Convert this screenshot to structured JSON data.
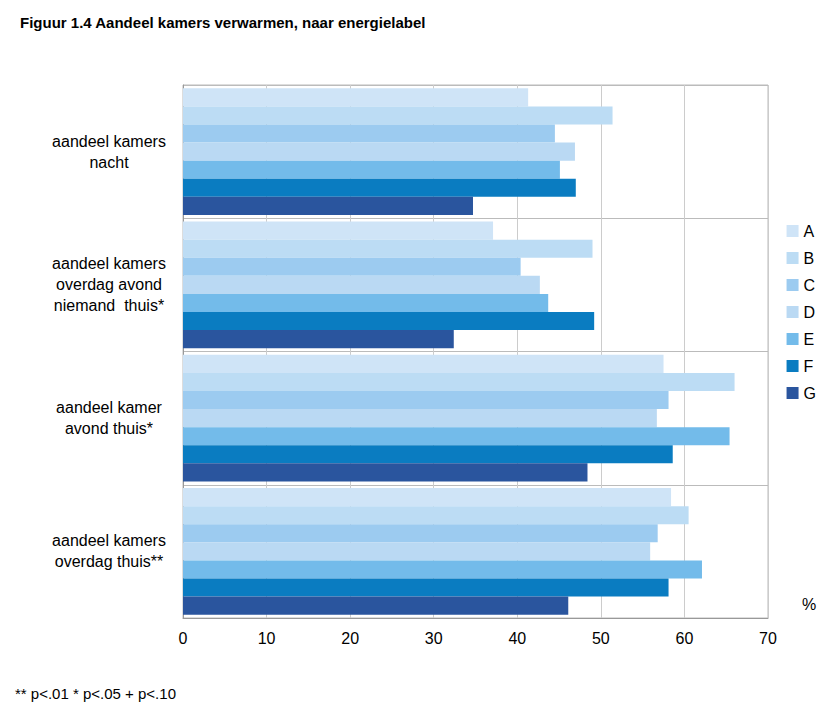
{
  "chart_data": {
    "type": "bar",
    "orientation": "horizontal",
    "title": "Figuur 1.4 Aandeel kamers verwarmen, naar energielabel",
    "xlabel": "%",
    "footnote": "** p<.01 * p<.05 + p<.10",
    "categories": [
      "aandeel kamers\nnacht",
      "aandeel kamers\noverdag avond\nniemand  thuis*",
      "aandeel kamer\navond thuis*",
      "aandeel kamers\noverdag thuis**"
    ],
    "series": [
      {
        "name": "A",
        "color": "#cfe4f7",
        "values": [
          41.3,
          37.1,
          57.5,
          58.4
        ]
      },
      {
        "name": "B",
        "color": "#bcdcf4",
        "values": [
          51.4,
          49.0,
          66.0,
          60.5
        ]
      },
      {
        "name": "C",
        "color": "#9ccbf0",
        "values": [
          44.5,
          40.4,
          58.1,
          56.8
        ]
      },
      {
        "name": "D",
        "color": "#bad9f3",
        "values": [
          46.9,
          42.7,
          56.7,
          55.9
        ]
      },
      {
        "name": "E",
        "color": "#73bbea",
        "values": [
          45.1,
          43.7,
          65.4,
          62.1
        ]
      },
      {
        "name": "F",
        "color": "#0a7cc1",
        "values": [
          47.0,
          49.2,
          58.6,
          58.1
        ]
      },
      {
        "name": "G",
        "color": "#2a559e",
        "values": [
          34.7,
          32.4,
          48.4,
          46.1
        ]
      }
    ],
    "xlim": [
      0,
      70
    ],
    "xticks": [
      0,
      10,
      20,
      30,
      40,
      50,
      60,
      70
    ],
    "grid": true,
    "legend": "right"
  }
}
